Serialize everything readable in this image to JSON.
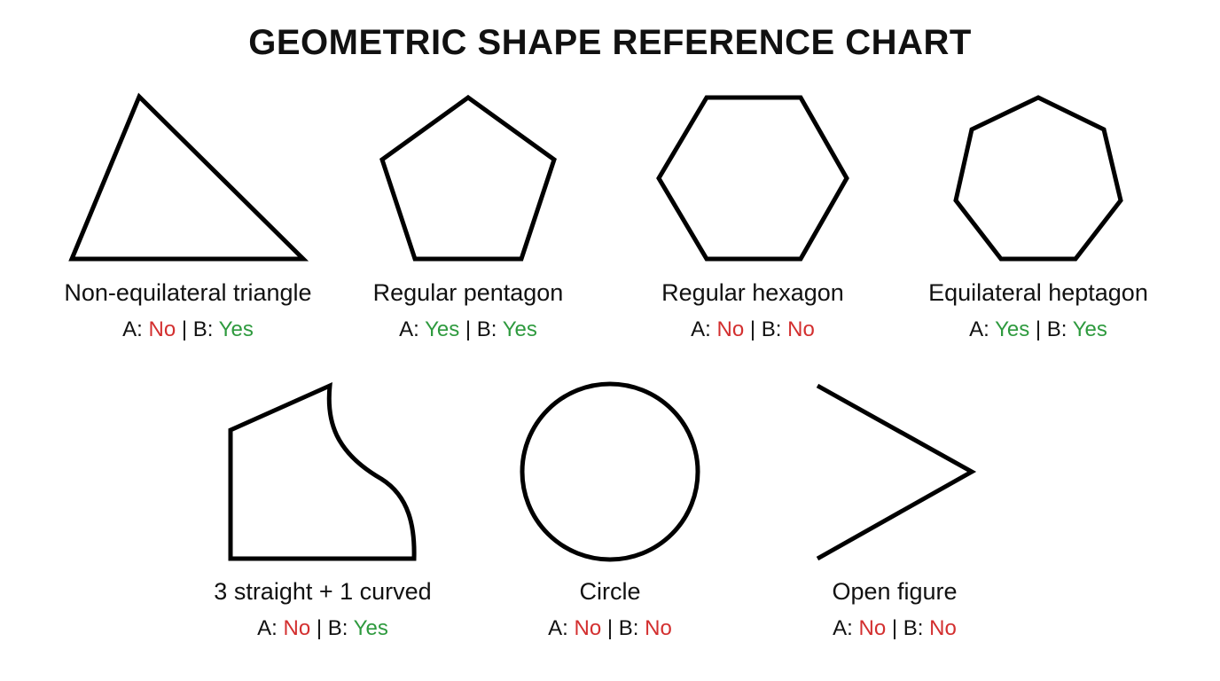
{
  "title": "GEOMETRIC SHAPE REFERENCE CHART",
  "colors": {
    "no": "#d32f2f",
    "yes": "#2e9a3e",
    "stroke": "#000000"
  },
  "shapes": [
    {
      "name": "Non-equilateral triangle",
      "a": "No",
      "b": "Yes"
    },
    {
      "name": "Regular pentagon",
      "a": "Yes",
      "b": "Yes"
    },
    {
      "name": "Regular hexagon",
      "a": "No",
      "b": "No"
    },
    {
      "name": "Equilateral heptagon",
      "a": "Yes",
      "b": "Yes"
    },
    {
      "name": "3 straight + 1 curved",
      "a": "No",
      "b": "Yes"
    },
    {
      "name": "Circle",
      "a": "No",
      "b": "No"
    },
    {
      "name": "Open figure",
      "a": "No",
      "b": "No"
    }
  ],
  "prefix_a": "A: ",
  "separator": " | B: "
}
